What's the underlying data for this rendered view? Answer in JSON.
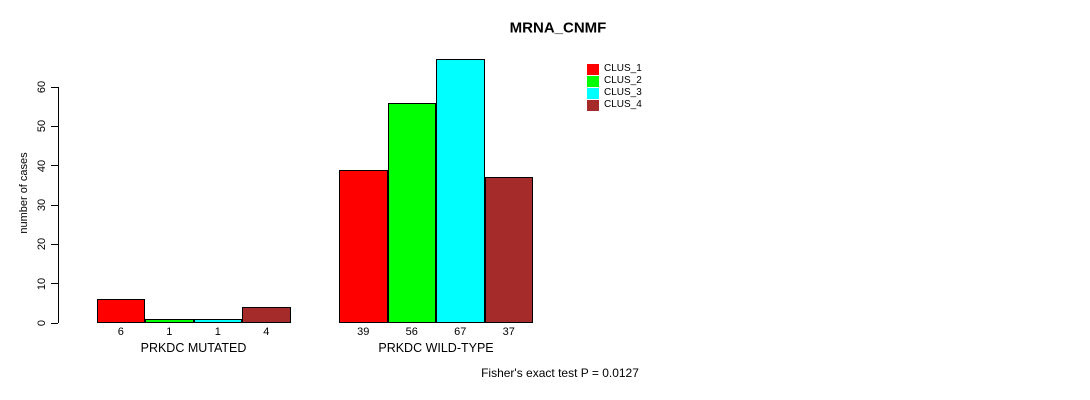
{
  "chart_data": {
    "type": "bar",
    "title": "MRNA_CNMF",
    "ylabel": "number of cases",
    "xlabel": "",
    "yticks": [
      0,
      10,
      20,
      30,
      40,
      50,
      60
    ],
    "ylim": [
      0,
      67
    ],
    "grid": false,
    "legend_position": "top-right",
    "series_names": [
      "CLUS_1",
      "CLUS_2",
      "CLUS_3",
      "CLUS_4"
    ],
    "series_colors": [
      "#ff0000",
      "#00ff00",
      "#00ffff",
      "#a52a2a"
    ],
    "groups": [
      {
        "label": "PRKDC MUTATED",
        "values": [
          6,
          1,
          1,
          4
        ]
      },
      {
        "label": "PRKDC WILD-TYPE",
        "values": [
          39,
          56,
          67,
          37
        ]
      }
    ],
    "annotation": "Fisher's exact test P = 0.0127"
  },
  "colors": {
    "axis": "#000000",
    "text": "#000000",
    "background": "#ffffff"
  }
}
